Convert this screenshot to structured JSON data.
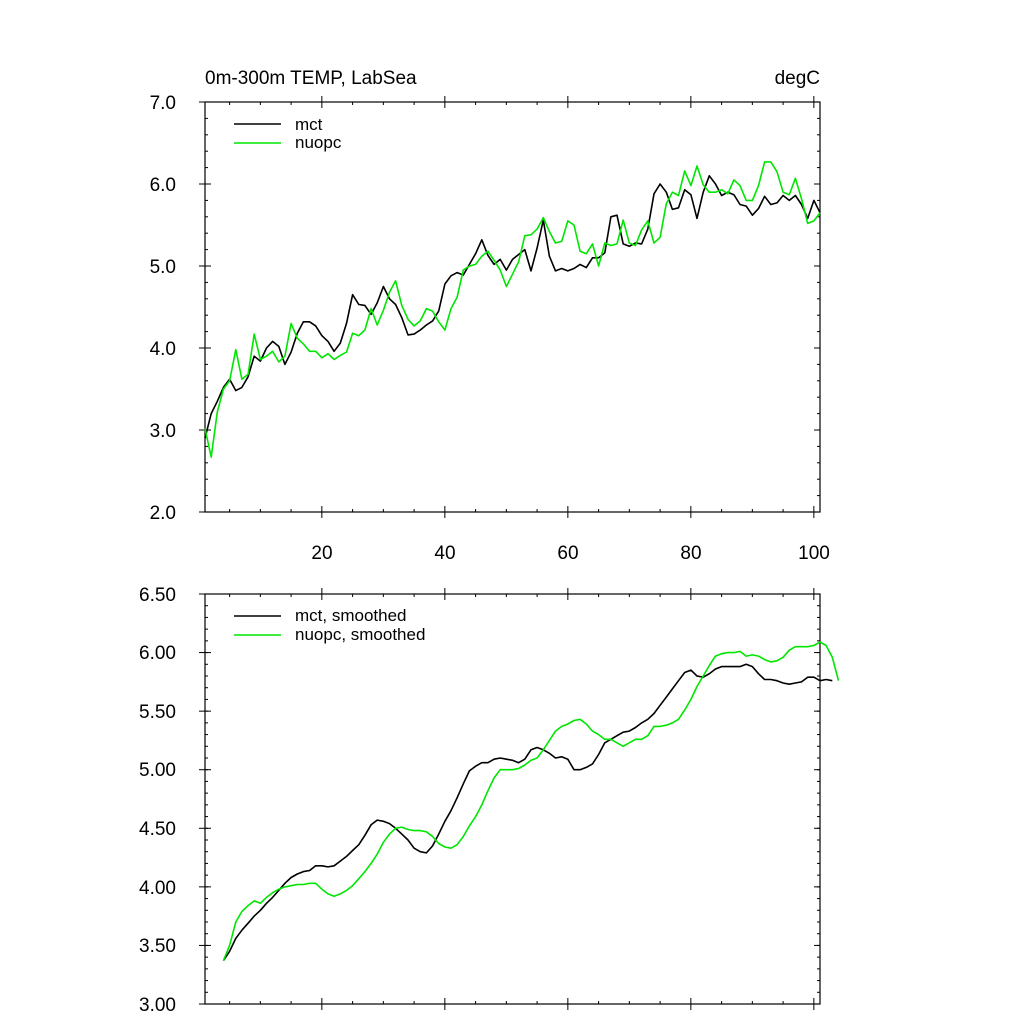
{
  "colors": {
    "mct": "#000000",
    "nuopc": "#00e600"
  },
  "chart_data": [
    {
      "type": "line",
      "title": "0m-300m TEMP, LabSea",
      "units": "degC",
      "xlim": [
        1,
        101
      ],
      "ylim": [
        2.0,
        7.0
      ],
      "yticks": [
        2.0,
        3.0,
        4.0,
        5.0,
        6.0,
        7.0
      ],
      "ytick_labels": [
        "2.0",
        "3.0",
        "4.0",
        "5.0",
        "6.0",
        "7.0"
      ],
      "xticks": [
        20,
        40,
        60,
        80,
        100
      ],
      "xtick_labels": [
        "20",
        "40",
        "60",
        "80",
        "100"
      ],
      "legend": [
        {
          "label": "mct",
          "color": "#000000"
        },
        {
          "label": "nuopc",
          "color": "#00e600"
        }
      ],
      "series": [
        {
          "name": "mct",
          "color": "#000000",
          "x_start": 1,
          "values": [
            2.9,
            3.2,
            3.35,
            3.52,
            3.62,
            3.48,
            3.52,
            3.65,
            3.9,
            3.84,
            4.0,
            4.08,
            4.02,
            3.8,
            3.95,
            4.18,
            4.32,
            4.32,
            4.27,
            4.15,
            4.08,
            3.96,
            4.06,
            4.3,
            4.65,
            4.53,
            4.52,
            4.41,
            4.55,
            4.75,
            4.6,
            4.53,
            4.37,
            4.16,
            4.17,
            4.22,
            4.28,
            4.33,
            4.45,
            4.78,
            4.88,
            4.92,
            4.89,
            5.02,
            5.15,
            5.32,
            5.13,
            5.02,
            5.08,
            4.95,
            5.08,
            5.14,
            5.2,
            4.94,
            5.22,
            5.56,
            5.12,
            4.94,
            4.97,
            4.94,
            4.97,
            5.02,
            4.98,
            5.1,
            5.1,
            5.16,
            5.6,
            5.62,
            5.27,
            5.24,
            5.28,
            5.27,
            5.45,
            5.88,
            6.0,
            5.9,
            5.69,
            5.71,
            5.93,
            5.87,
            5.58,
            5.9,
            6.1,
            6.0,
            5.86,
            5.9,
            5.87,
            5.75,
            5.73,
            5.62,
            5.7,
            5.85,
            5.75,
            5.77,
            5.86,
            5.8,
            5.86,
            5.75,
            5.58,
            5.8,
            5.65
          ]
        },
        {
          "name": "nuopc",
          "color": "#00e600",
          "x_start": 1,
          "values": [
            3.02,
            2.67,
            3.22,
            3.5,
            3.6,
            3.98,
            3.62,
            3.68,
            4.17,
            3.86,
            3.9,
            3.96,
            3.83,
            3.9,
            4.3,
            4.12,
            4.05,
            3.96,
            3.96,
            3.88,
            3.93,
            3.86,
            3.91,
            3.95,
            4.18,
            4.15,
            4.22,
            4.48,
            4.28,
            4.46,
            4.68,
            4.82,
            4.52,
            4.35,
            4.27,
            4.33,
            4.48,
            4.45,
            4.32,
            4.22,
            4.48,
            4.62,
            4.95,
            5.0,
            5.02,
            5.12,
            5.18,
            5.07,
            4.95,
            4.75,
            4.9,
            5.05,
            5.37,
            5.38,
            5.45,
            5.59,
            5.42,
            5.28,
            5.3,
            5.55,
            5.5,
            5.18,
            5.15,
            5.27,
            5.0,
            5.28,
            5.25,
            5.27,
            5.56,
            5.28,
            5.25,
            5.44,
            5.55,
            5.28,
            5.35,
            5.76,
            5.9,
            5.86,
            6.16,
            5.98,
            6.22,
            5.99,
            5.9,
            5.9,
            5.93,
            5.88,
            6.05,
            5.98,
            5.8,
            5.8,
            5.98,
            6.27,
            6.27,
            6.15,
            5.9,
            5.87,
            6.07,
            5.82,
            5.52,
            5.55,
            5.65
          ]
        }
      ]
    },
    {
      "type": "line",
      "title": "",
      "units": "",
      "xlim": [
        1,
        101
      ],
      "ylim": [
        3.0,
        6.5
      ],
      "yticks": [
        3.0,
        3.5,
        4.0,
        4.5,
        5.0,
        5.5,
        6.0,
        6.5
      ],
      "ytick_labels": [
        "3.00",
        "3.50",
        "4.00",
        "4.50",
        "5.00",
        "5.50",
        "6.00",
        "6.50"
      ],
      "xticks": [
        20,
        40,
        60,
        80,
        100
      ],
      "xtick_labels": [],
      "legend": [
        {
          "label": "mct, smoothed",
          "color": "#000000"
        },
        {
          "label": "nuopc, smoothed",
          "color": "#00e600"
        }
      ],
      "series": [
        {
          "name": "mct, smoothed",
          "color": "#000000",
          "x_start": 4,
          "values": [
            3.37,
            3.45,
            3.56,
            3.63,
            3.69,
            3.75,
            3.8,
            3.86,
            3.91,
            3.97,
            4.03,
            4.08,
            4.11,
            4.13,
            4.14,
            4.18,
            4.18,
            4.17,
            4.18,
            4.22,
            4.26,
            4.31,
            4.36,
            4.44,
            4.53,
            4.57,
            4.56,
            4.54,
            4.5,
            4.45,
            4.4,
            4.33,
            4.3,
            4.29,
            4.35,
            4.45,
            4.56,
            4.65,
            4.76,
            4.88,
            4.99,
            5.03,
            5.06,
            5.06,
            5.09,
            5.1,
            5.09,
            5.08,
            5.06,
            5.09,
            5.17,
            5.19,
            5.17,
            5.14,
            5.1,
            5.11,
            5.09,
            5.0,
            5.0,
            5.02,
            5.05,
            5.13,
            5.23,
            5.26,
            5.29,
            5.32,
            5.33,
            5.36,
            5.4,
            5.43,
            5.48,
            5.55,
            5.62,
            5.69,
            5.76,
            5.83,
            5.85,
            5.8,
            5.79,
            5.82,
            5.86,
            5.88,
            5.88,
            5.88,
            5.88,
            5.9,
            5.88,
            5.82,
            5.77,
            5.77,
            5.76,
            5.74,
            5.73,
            5.74,
            5.75,
            5.79,
            5.79,
            5.76,
            5.77,
            5.76
          ]
        },
        {
          "name": "nuopc, smoothed",
          "color": "#00e600",
          "x_start": 4,
          "values": [
            3.37,
            3.5,
            3.7,
            3.79,
            3.84,
            3.88,
            3.86,
            3.91,
            3.95,
            3.98,
            4.0,
            4.01,
            4.02,
            4.02,
            4.03,
            4.03,
            3.98,
            3.94,
            3.92,
            3.94,
            3.97,
            4.01,
            4.07,
            4.13,
            4.2,
            4.28,
            4.38,
            4.45,
            4.5,
            4.51,
            4.49,
            4.48,
            4.48,
            4.47,
            4.43,
            4.37,
            4.34,
            4.33,
            4.36,
            4.43,
            4.52,
            4.6,
            4.7,
            4.82,
            4.93,
            5.0,
            5.0,
            5.0,
            5.01,
            5.04,
            5.08,
            5.1,
            5.17,
            5.25,
            5.33,
            5.37,
            5.39,
            5.42,
            5.43,
            5.39,
            5.33,
            5.3,
            5.26,
            5.26,
            5.23,
            5.2,
            5.23,
            5.26,
            5.26,
            5.29,
            5.37,
            5.37,
            5.38,
            5.4,
            5.43,
            5.51,
            5.6,
            5.71,
            5.8,
            5.89,
            5.97,
            5.99,
            6.0,
            6.0,
            6.01,
            5.97,
            5.98,
            5.97,
            5.94,
            5.92,
            5.93,
            5.96,
            6.02,
            6.05,
            6.05,
            6.05,
            6.06,
            6.09,
            6.06,
            5.96,
            5.76
          ]
        }
      ]
    }
  ]
}
